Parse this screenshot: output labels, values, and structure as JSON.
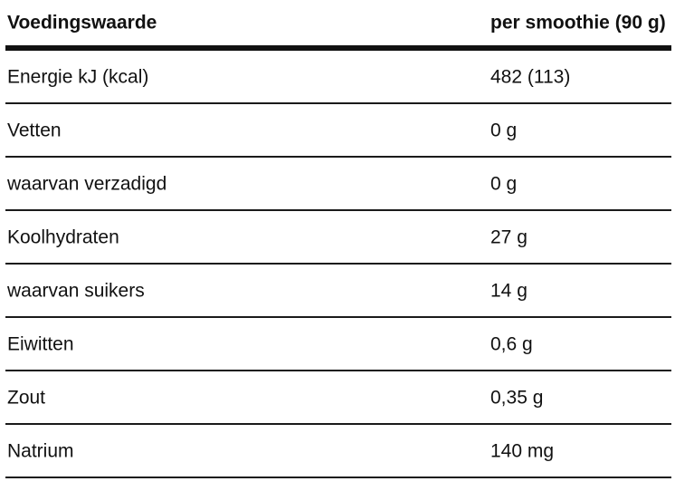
{
  "table": {
    "header": {
      "label": "Voedingswaarde",
      "value": "per smoothie (90 g)"
    },
    "rows": [
      {
        "label": "Energie kJ (kcal)",
        "value": "482 (113)"
      },
      {
        "label": "Vetten",
        "value": "0 g"
      },
      {
        "label": "waarvan verzadigd",
        "value": "0 g"
      },
      {
        "label": "Koolhydraten",
        "value": "27 g"
      },
      {
        "label": "waarvan suikers",
        "value": "14 g"
      },
      {
        "label": "Eiwitten",
        "value": "0,6 g"
      },
      {
        "label": "Zout",
        "value": "0,35 g"
      },
      {
        "label": "Natrium",
        "value": "140 mg"
      }
    ]
  }
}
